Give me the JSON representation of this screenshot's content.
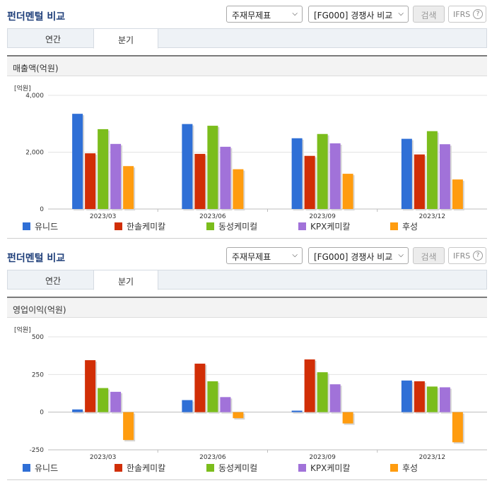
{
  "title": "펀더멘털 비교",
  "controls": {
    "statement_select": "주재무제표",
    "compare_select": "[FG000] 경쟁사 비교",
    "search_label": "검색",
    "ifrs_label": "IFRS",
    "help_glyph": "?"
  },
  "tabs": {
    "annual": "연간",
    "quarterly": "분기"
  },
  "chart_data": [
    {
      "type": "bar",
      "title": "매출액(억원)",
      "unit_label": "[억원]",
      "categories": [
        "2023/03",
        "2023/06",
        "2023/09",
        "2023/12"
      ],
      "ylim": [
        0,
        4000
      ],
      "yticks": [
        0,
        2000,
        4000
      ],
      "ytick_labels": [
        "0",
        "2,000",
        "4,000"
      ],
      "series": [
        {
          "name": "유니드",
          "color": "#2f6fd6",
          "values": [
            3350,
            2990,
            2490,
            2470
          ]
        },
        {
          "name": "한솔케미칼",
          "color": "#d12e06",
          "values": [
            1960,
            1940,
            1870,
            1920
          ]
        },
        {
          "name": "동성케미컬",
          "color": "#7bbd1c",
          "values": [
            2810,
            2930,
            2640,
            2740
          ]
        },
        {
          "name": "KPX케미칼",
          "color": "#a172d9",
          "values": [
            2290,
            2190,
            2310,
            2280
          ]
        },
        {
          "name": "후성",
          "color": "#ff9c0f",
          "values": [
            1510,
            1400,
            1240,
            1040
          ]
        }
      ],
      "legend": "bottom"
    },
    {
      "type": "bar",
      "title": "영업이익(억원)",
      "unit_label": "[억원]",
      "categories": [
        "2023/03",
        "2023/06",
        "2023/09",
        "2023/12"
      ],
      "ylim": [
        -250,
        500
      ],
      "yticks": [
        -250,
        0,
        250,
        500
      ],
      "ytick_labels": [
        "-250",
        "0",
        "250",
        "500"
      ],
      "series": [
        {
          "name": "유니드",
          "color": "#2f6fd6",
          "values": [
            18,
            80,
            10,
            210
          ]
        },
        {
          "name": "한솔케미칼",
          "color": "#d12e06",
          "values": [
            345,
            322,
            350,
            205
          ]
        },
        {
          "name": "동성케미컬",
          "color": "#7bbd1c",
          "values": [
            160,
            205,
            265,
            170
          ]
        },
        {
          "name": "KPX케미칼",
          "color": "#a172d9",
          "values": [
            135,
            100,
            185,
            165
          ]
        },
        {
          "name": "후성",
          "color": "#ff9c0f",
          "values": [
            -185,
            -40,
            -75,
            -200
          ]
        }
      ],
      "legend": "bottom"
    }
  ]
}
